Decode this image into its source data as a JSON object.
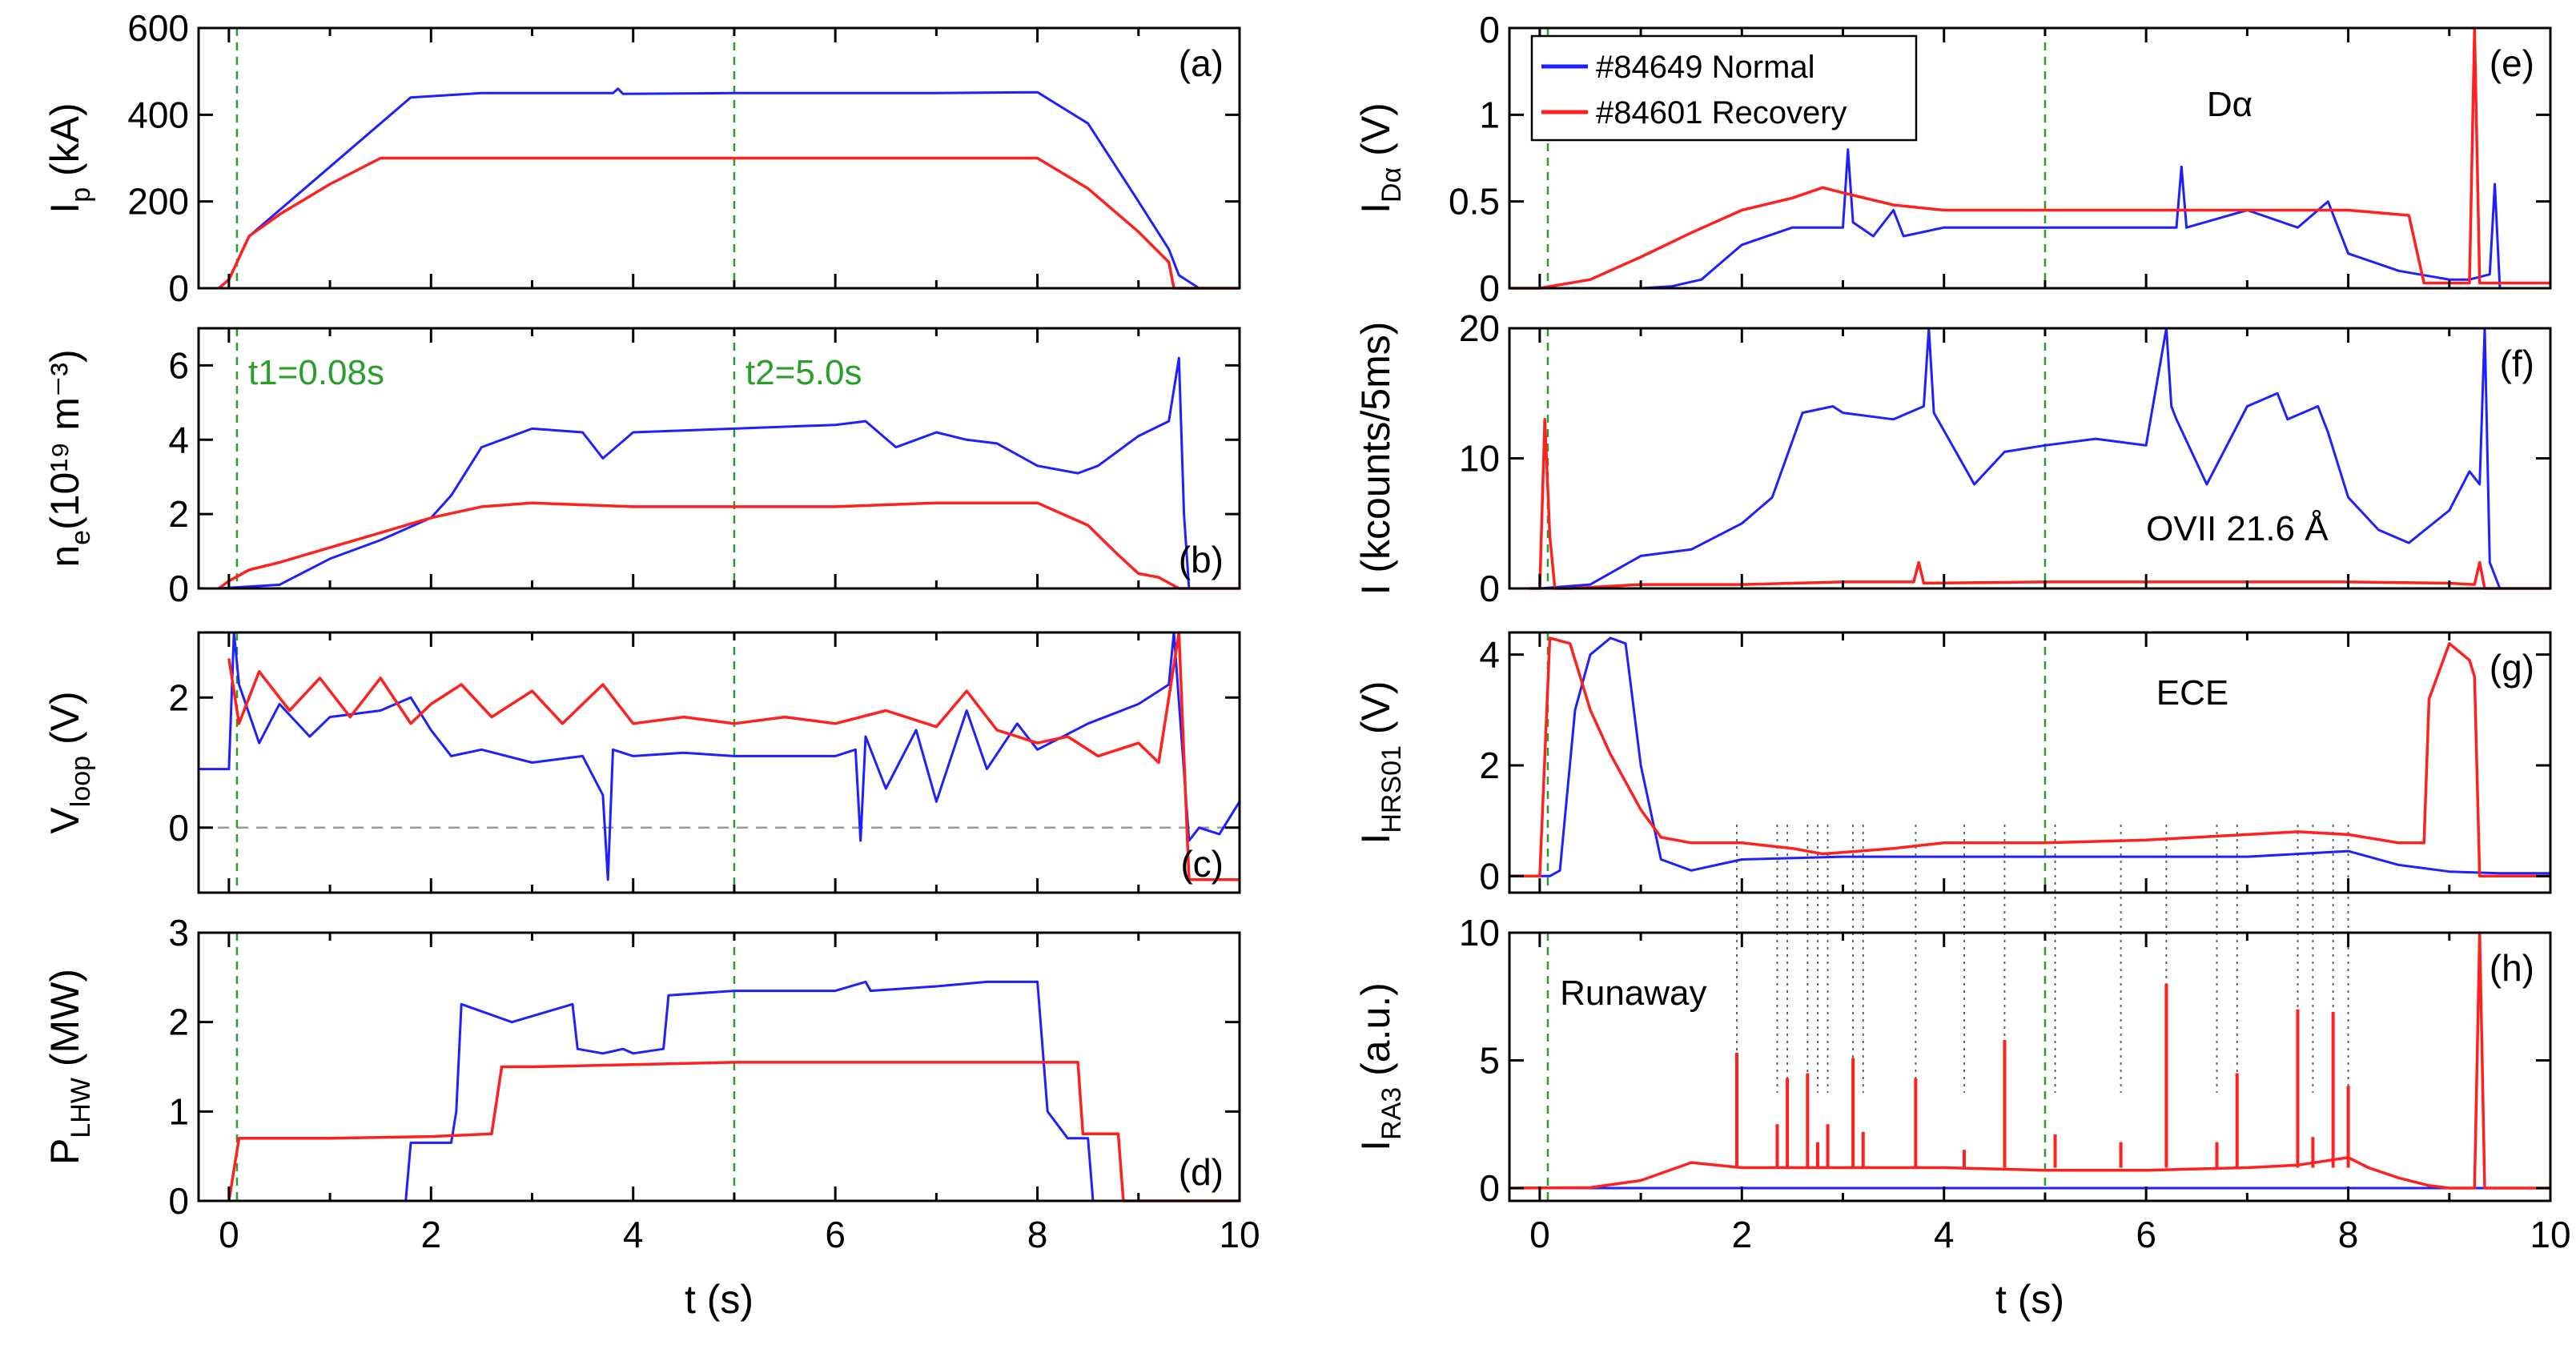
{
  "colors": {
    "normal": "#1f1fff",
    "recovery": "#ff2020",
    "marker": "#2a9d2a",
    "zero": "#9a9a9a",
    "dotted": "#555555"
  },
  "legend": {
    "normal_label": "#84649 Normal",
    "recovery_label": "#84601 Recovery"
  },
  "time_markers": [
    {
      "t": 0.08,
      "label": "t1=0.08s"
    },
    {
      "t": 5.0,
      "label": "t2=5.0s"
    }
  ],
  "xaxis": {
    "label": "t (s)",
    "range": [
      -0.3,
      10
    ],
    "ticks": [
      0,
      2,
      4,
      6,
      8,
      10
    ]
  },
  "chart_data": [
    {
      "id": "a",
      "tag": "(a)",
      "type": "line",
      "ylabel": {
        "main": "I",
        "sub": "p",
        "unit": " (kA)"
      },
      "ylim": [
        0,
        600
      ],
      "yticks": [
        0,
        200,
        400,
        600
      ],
      "annotation": "",
      "series": [
        {
          "name": "#84649 Normal",
          "x": [
            -0.1,
            0.0,
            0.2,
            0.5,
            1.0,
            1.8,
            2.5,
            3.8,
            3.85,
            3.9,
            5.0,
            7.0,
            8.0,
            8.5,
            9.0,
            9.3,
            9.4,
            9.6,
            10
          ],
          "y": [
            0,
            20,
            120,
            180,
            280,
            440,
            450,
            450,
            460,
            448,
            450,
            450,
            452,
            380,
            200,
            90,
            30,
            0,
            0
          ]
        },
        {
          "name": "#84601 Recovery",
          "x": [
            -0.1,
            0.0,
            0.2,
            0.5,
            1.0,
            1.5,
            2.0,
            5.0,
            7.0,
            8.0,
            8.5,
            9.0,
            9.3,
            9.35,
            9.4,
            10
          ],
          "y": [
            0,
            20,
            120,
            170,
            240,
            300,
            300,
            300,
            300,
            300,
            230,
            130,
            60,
            0,
            0,
            0
          ]
        }
      ]
    },
    {
      "id": "b",
      "tag": "(b)",
      "type": "line",
      "ylabel": {
        "main": "n",
        "sub": "e",
        "unit": "(10¹⁹ m⁻³)"
      },
      "ylim": [
        0,
        7
      ],
      "yticks": [
        0,
        2,
        4,
        6
      ],
      "annotation": "",
      "series": [
        {
          "name": "#84649 Normal",
          "x": [
            -0.1,
            0.5,
            1.0,
            1.5,
            2.0,
            2.2,
            2.5,
            3.0,
            3.5,
            3.7,
            4.0,
            5.0,
            6.0,
            6.3,
            6.6,
            7.0,
            7.3,
            7.6,
            8.0,
            8.4,
            8.6,
            9.0,
            9.3,
            9.4,
            9.45,
            9.5,
            10
          ],
          "y": [
            0,
            0.1,
            0.8,
            1.3,
            1.9,
            2.5,
            3.8,
            4.3,
            4.2,
            3.5,
            4.2,
            4.3,
            4.4,
            4.5,
            3.8,
            4.2,
            4.0,
            3.9,
            3.3,
            3.1,
            3.3,
            4.1,
            4.5,
            6.2,
            2.0,
            0,
            0
          ]
        },
        {
          "name": "#84601 Recovery",
          "x": [
            -0.1,
            0.0,
            0.2,
            0.5,
            1.0,
            1.5,
            2.0,
            2.5,
            3.0,
            4.0,
            5.0,
            6.0,
            7.0,
            8.0,
            8.5,
            8.8,
            9.0,
            9.2,
            9.4,
            10
          ],
          "y": [
            0,
            0.2,
            0.5,
            0.7,
            1.1,
            1.5,
            1.9,
            2.2,
            2.3,
            2.2,
            2.2,
            2.2,
            2.3,
            2.3,
            1.7,
            0.9,
            0.4,
            0.3,
            0,
            0
          ]
        }
      ]
    },
    {
      "id": "c",
      "tag": "(c)",
      "type": "line",
      "ylabel": {
        "main": "V",
        "sub": "loop",
        "unit": " (V)"
      },
      "ylim": [
        -1,
        3
      ],
      "yticks": [
        0,
        2
      ],
      "annotation": "",
      "zero_line": true,
      "series": [
        {
          "name": "#84649 Normal",
          "x": [
            -0.3,
            0.0,
            0.05,
            0.1,
            0.3,
            0.5,
            0.8,
            1.0,
            1.5,
            1.8,
            2.0,
            2.2,
            2.5,
            3.0,
            3.5,
            3.7,
            3.75,
            3.8,
            4.0,
            4.5,
            5.0,
            5.5,
            6.0,
            6.2,
            6.25,
            6.3,
            6.5,
            6.8,
            7.0,
            7.3,
            7.5,
            7.8,
            8.0,
            8.5,
            9.0,
            9.3,
            9.35,
            9.5,
            9.6,
            9.8,
            10
          ],
          "y": [
            0.9,
            0.9,
            3.0,
            2.2,
            1.3,
            1.9,
            1.4,
            1.7,
            1.8,
            2.0,
            1.5,
            1.1,
            1.2,
            1.0,
            1.1,
            0.5,
            -0.8,
            1.2,
            1.1,
            1.15,
            1.1,
            1.1,
            1.1,
            1.2,
            -0.2,
            1.4,
            0.6,
            1.5,
            0.4,
            1.8,
            0.9,
            1.6,
            1.2,
            1.6,
            1.9,
            2.2,
            3.0,
            -0.2,
            0.0,
            -0.1,
            0.4
          ]
        },
        {
          "name": "#84601 Recovery",
          "x": [
            0.0,
            0.1,
            0.3,
            0.6,
            0.9,
            1.2,
            1.5,
            1.8,
            2.0,
            2.3,
            2.6,
            3.0,
            3.3,
            3.7,
            4.0,
            4.5,
            5.0,
            5.5,
            6.0,
            6.5,
            7.0,
            7.3,
            7.6,
            8.0,
            8.3,
            8.6,
            9.0,
            9.2,
            9.3,
            9.4,
            9.5,
            10
          ],
          "y": [
            2.6,
            1.6,
            2.4,
            1.8,
            2.3,
            1.7,
            2.3,
            1.6,
            1.9,
            2.2,
            1.7,
            2.1,
            1.6,
            2.2,
            1.6,
            1.7,
            1.6,
            1.7,
            1.6,
            1.8,
            1.55,
            2.1,
            1.5,
            1.3,
            1.4,
            1.1,
            1.3,
            1.0,
            2.0,
            3.0,
            -0.8,
            -0.8
          ]
        }
      ]
    },
    {
      "id": "d",
      "tag": "(d)",
      "type": "line",
      "ylabel": {
        "main": "P",
        "sub": "LHW",
        "unit": " (MW)"
      },
      "ylim": [
        0,
        3
      ],
      "yticks": [
        0,
        1,
        2,
        3
      ],
      "annotation": "",
      "series": [
        {
          "name": "#84649 Normal",
          "x": [
            1.75,
            1.8,
            2.2,
            2.25,
            2.3,
            2.8,
            3.4,
            3.45,
            3.7,
            3.9,
            4.0,
            4.3,
            4.35,
            5.0,
            6.0,
            6.3,
            6.35,
            7.0,
            7.5,
            8.0,
            8.1,
            8.3,
            8.5,
            8.55,
            10
          ],
          "y": [
            0,
            0.65,
            0.65,
            1.0,
            2.2,
            2.0,
            2.2,
            1.7,
            1.65,
            1.7,
            1.65,
            1.7,
            2.3,
            2.35,
            2.35,
            2.45,
            2.35,
            2.4,
            2.45,
            2.45,
            1.0,
            0.7,
            0.7,
            0,
            0
          ]
        },
        {
          "name": "#84601 Recovery",
          "x": [
            0.0,
            0.1,
            0.2,
            1.0,
            2.0,
            2.6,
            2.7,
            3.0,
            5.0,
            7.0,
            8.4,
            8.45,
            8.8,
            8.85,
            10
          ],
          "y": [
            0,
            0.7,
            0.7,
            0.7,
            0.72,
            0.75,
            1.5,
            1.5,
            1.55,
            1.55,
            1.55,
            0.75,
            0.75,
            0,
            0
          ]
        }
      ]
    },
    {
      "id": "e",
      "tag": "(e)",
      "type": "line",
      "ylabel": {
        "main": "I",
        "sub": "Dα",
        "unit": " (V)"
      },
      "ylim": [
        0,
        1.5
      ],
      "yticks": [
        0,
        0.5,
        1.0
      ],
      "ytick_top_label": "0",
      "annotation": "Dα",
      "legend": true,
      "series": [
        {
          "name": "#84649 Normal",
          "x": [
            -0.3,
            0.5,
            1.0,
            1.3,
            1.6,
            2.0,
            2.5,
            3.0,
            3.05,
            3.1,
            3.3,
            3.5,
            3.6,
            4.0,
            5.0,
            6.0,
            6.3,
            6.35,
            6.4,
            7.0,
            7.5,
            7.8,
            8.0,
            8.5,
            9.0,
            9.2,
            9.4,
            9.45,
            9.5,
            10
          ],
          "y": [
            0,
            0,
            0,
            0.01,
            0.05,
            0.25,
            0.35,
            0.35,
            0.8,
            0.38,
            0.3,
            0.45,
            0.3,
            0.35,
            0.35,
            0.35,
            0.35,
            0.7,
            0.35,
            0.45,
            0.35,
            0.5,
            0.2,
            0.1,
            0.05,
            0.05,
            0.08,
            0.6,
            0,
            0
          ]
        },
        {
          "name": "#84601 Recovery",
          "x": [
            -0.3,
            0.0,
            0.5,
            1.0,
            1.5,
            2.0,
            2.5,
            2.8,
            3.0,
            3.5,
            4.0,
            5.0,
            6.0,
            7.0,
            8.0,
            8.6,
            8.75,
            9.0,
            9.2,
            9.25,
            9.3,
            9.35,
            10
          ],
          "y": [
            0,
            0,
            0.05,
            0.18,
            0.32,
            0.45,
            0.52,
            0.58,
            0.55,
            0.48,
            0.45,
            0.45,
            0.45,
            0.45,
            0.45,
            0.42,
            0.03,
            0.03,
            0.03,
            1.5,
            0.03,
            0.03,
            0.03
          ]
        }
      ]
    },
    {
      "id": "f",
      "tag": "(f)",
      "type": "line",
      "ylabel": {
        "main": "I",
        "sub": "",
        "unit": " (kcounts/5ms)"
      },
      "ylim": [
        0,
        20
      ],
      "yticks": [
        0,
        10,
        20
      ],
      "annotation": "OVII 21.6 Å",
      "series": [
        {
          "name": "#84649 Normal",
          "x": [
            0.0,
            0.5,
            1.0,
            1.5,
            2.0,
            2.3,
            2.6,
            2.9,
            3.0,
            3.5,
            3.8,
            3.85,
            3.9,
            4.3,
            4.6,
            5.0,
            5.5,
            6.0,
            6.2,
            6.25,
            6.3,
            6.6,
            7.0,
            7.3,
            7.4,
            7.7,
            7.8,
            8.0,
            8.3,
            8.6,
            9.0,
            9.2,
            9.3,
            9.35,
            9.4,
            9.5
          ],
          "y": [
            0,
            0.3,
            2.5,
            3.0,
            5.0,
            7.0,
            13.5,
            14.0,
            13.5,
            13.0,
            14.0,
            20.0,
            13.5,
            8.0,
            10.5,
            11.0,
            11.5,
            11.0,
            20.0,
            14.0,
            13.0,
            8.0,
            14.0,
            15.0,
            13.0,
            14.0,
            12.0,
            7.0,
            4.5,
            3.5,
            6.0,
            9.0,
            8.0,
            20.0,
            2.0,
            0
          ]
        },
        {
          "name": "#84601 Recovery",
          "x": [
            -0.1,
            0.0,
            0.05,
            0.1,
            0.15,
            0.3,
            1.0,
            2.0,
            3.0,
            3.7,
            3.75,
            3.8,
            5.0,
            6.0,
            7.0,
            8.0,
            9.0,
            9.25,
            9.3,
            9.35,
            10
          ],
          "y": [
            0,
            0,
            13.0,
            4.0,
            0,
            0,
            0.3,
            0.3,
            0.5,
            0.5,
            2.0,
            0.4,
            0.5,
            0.5,
            0.5,
            0.5,
            0.4,
            0.3,
            2.0,
            0,
            0
          ]
        }
      ]
    },
    {
      "id": "g",
      "tag": "(g)",
      "type": "line",
      "ylabel": {
        "main": "I",
        "sub": "HRS01",
        "unit": " (V)"
      },
      "ylim": [
        -0.3,
        4.4
      ],
      "yticks": [
        0,
        2,
        4
      ],
      "annotation": "ECE",
      "series": [
        {
          "name": "#84649 Normal",
          "x": [
            -0.3,
            0.1,
            0.2,
            0.35,
            0.5,
            0.7,
            0.85,
            1.0,
            1.2,
            1.5,
            2.0,
            3.0,
            4.0,
            5.0,
            6.0,
            7.0,
            7.5,
            8.0,
            8.5,
            9.0,
            9.5,
            10
          ],
          "y": [
            0,
            0,
            0.1,
            3.0,
            4.0,
            4.3,
            4.2,
            2.0,
            0.3,
            0.1,
            0.3,
            0.35,
            0.35,
            0.35,
            0.35,
            0.35,
            0.4,
            0.45,
            0.2,
            0.08,
            0.05,
            0.05
          ]
        },
        {
          "name": "#84601 Recovery",
          "x": [
            -0.3,
            0.0,
            0.1,
            0.3,
            0.5,
            0.7,
            1.0,
            1.2,
            1.5,
            2.0,
            2.5,
            2.8,
            3.5,
            4.0,
            5.0,
            6.0,
            7.0,
            7.5,
            8.0,
            8.5,
            8.75,
            8.8,
            9.0,
            9.2,
            9.25,
            9.3,
            10
          ],
          "y": [
            0,
            0,
            4.3,
            4.2,
            3.0,
            2.2,
            1.2,
            0.7,
            0.6,
            0.6,
            0.5,
            0.4,
            0.5,
            0.6,
            0.6,
            0.65,
            0.75,
            0.8,
            0.75,
            0.6,
            0.6,
            3.2,
            4.2,
            3.9,
            3.6,
            0,
            0
          ]
        }
      ]
    },
    {
      "id": "h",
      "tag": "(h)",
      "type": "line",
      "ylabel": {
        "main": "I",
        "sub": "RA3",
        "unit": " (a.u.)"
      },
      "ylim": [
        -0.5,
        10
      ],
      "yticks": [
        0,
        5,
        10
      ],
      "annotation": "Runaway",
      "series": [
        {
          "name": "#84649 Normal",
          "x": [
            -0.3,
            10
          ],
          "y": [
            0,
            0
          ]
        },
        {
          "name": "#84601 Recovery",
          "x": [
            -0.3,
            0.5,
            1.0,
            1.5,
            2.0,
            2.5,
            3.0,
            4.0,
            5.0,
            6.0,
            7.0,
            7.5,
            8.0,
            8.2,
            8.5,
            8.8,
            9.0,
            9.25,
            9.3,
            9.35,
            10
          ],
          "y": [
            0,
            0.02,
            0.3,
            1.0,
            0.8,
            0.8,
            0.8,
            0.8,
            0.7,
            0.7,
            0.8,
            0.9,
            1.2,
            0.8,
            0.4,
            0.1,
            0,
            0,
            10,
            0,
            0
          ]
        }
      ],
      "spikes": {
        "t": [
          1.95,
          2.35,
          2.45,
          2.65,
          2.75,
          2.85,
          3.1,
          3.2,
          3.72,
          4.2,
          4.6,
          5.1,
          5.75,
          6.2,
          6.7,
          6.9,
          7.5,
          7.65,
          7.85,
          8.0
        ],
        "v": [
          5.3,
          2.5,
          4.3,
          4.5,
          1.8,
          2.5,
          5.1,
          2.2,
          4.3,
          1.5,
          5.8,
          2.1,
          1.8,
          8.0,
          1.8,
          4.5,
          7.0,
          2.0,
          6.9,
          4.0
        ]
      }
    }
  ]
}
